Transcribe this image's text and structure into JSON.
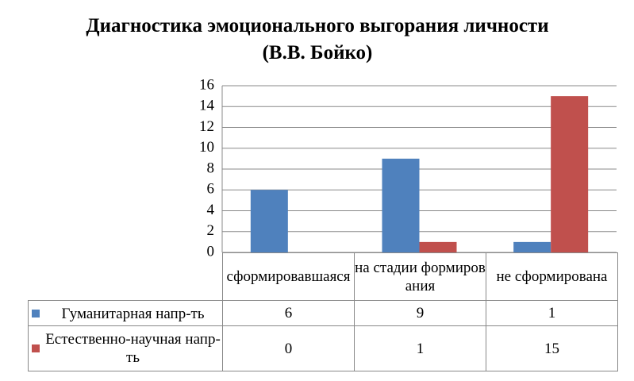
{
  "chart_data": {
    "type": "bar",
    "title": "Диагностика эмоционального выгорания личности (В.В. Бойко)",
    "categories": [
      "сформировавшаяся",
      "на стадии формирования",
      "не сформирована"
    ],
    "series": [
      {
        "name": "Гуманитарная напр-ть",
        "color": "#4f81bd",
        "values": [
          6,
          9,
          1
        ]
      },
      {
        "name": "Естественно-научная напр-ть",
        "color": "#c0504d",
        "values": [
          0,
          1,
          15
        ]
      }
    ],
    "ylim": [
      0,
      16
    ],
    "yticks": [
      0,
      2,
      4,
      6,
      8,
      10,
      12,
      14,
      16
    ],
    "grid": true
  }
}
